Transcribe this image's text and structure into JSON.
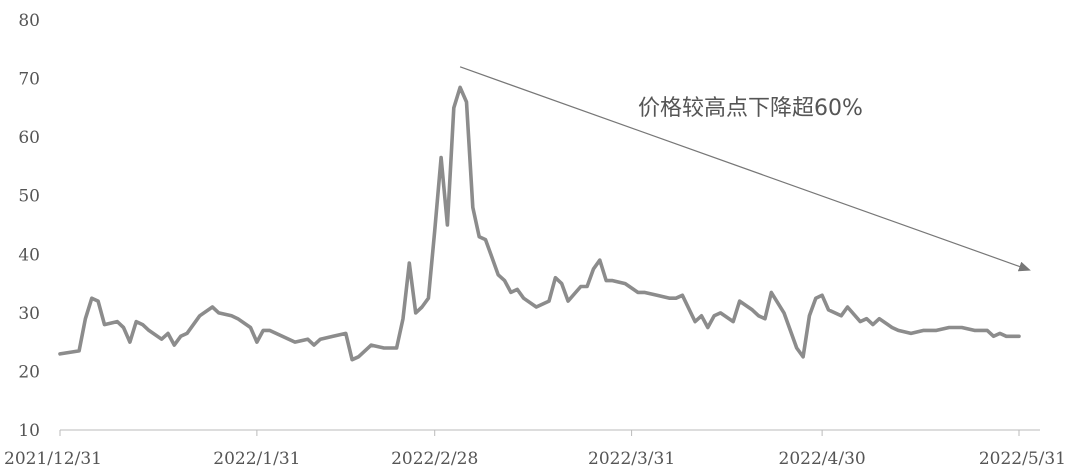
{
  "chart_data": {
    "type": "line",
    "title": "",
    "xlabel": "",
    "ylabel": "",
    "ylim": [
      10,
      80
    ],
    "yticks": [
      10,
      20,
      30,
      40,
      50,
      60,
      70,
      80
    ],
    "x_tick_labels": [
      "2021/12/31",
      "2022/1/31",
      "2022/2/28",
      "2022/3/31",
      "2022/4/30",
      "2022/5/31"
    ],
    "x_tick_dates": [
      "2021-12-31",
      "2022-01-31",
      "2022-02-28",
      "2022-03-31",
      "2022-04-30",
      "2022-05-31"
    ],
    "grid": false,
    "legend": "none",
    "line_color": "#8c8c8c",
    "annotation": {
      "text": "价格较高点下降超60%",
      "arrow_from": {
        "x": "2022-03-04",
        "y": 72
      },
      "arrow_to": {
        "x": "2022-05-31",
        "y": 37
      },
      "color": "#777777"
    },
    "series": [
      {
        "x": [
          "2021-12-31",
          "2022-01-03",
          "2022-01-04",
          "2022-01-05",
          "2022-01-06",
          "2022-01-07",
          "2022-01-09",
          "2022-01-10",
          "2022-01-11",
          "2022-01-12",
          "2022-01-13",
          "2022-01-14",
          "2022-01-16",
          "2022-01-17",
          "2022-01-18",
          "2022-01-19",
          "2022-01-20",
          "2022-01-22",
          "2022-01-24",
          "2022-01-25",
          "2022-01-27",
          "2022-01-28",
          "2022-01-30",
          "2022-01-31",
          "2022-02-01",
          "2022-02-02",
          "2022-02-04",
          "2022-02-06",
          "2022-02-08",
          "2022-02-09",
          "2022-02-10",
          "2022-02-12",
          "2022-02-14",
          "2022-02-15",
          "2022-02-16",
          "2022-02-18",
          "2022-02-20",
          "2022-02-21",
          "2022-02-22",
          "2022-02-23",
          "2022-02-24",
          "2022-02-25",
          "2022-02-26",
          "2022-02-27",
          "2022-02-28",
          "2022-03-01",
          "2022-03-02",
          "2022-03-03",
          "2022-03-04",
          "2022-03-05",
          "2022-03-06",
          "2022-03-07",
          "2022-03-08",
          "2022-03-09",
          "2022-03-10",
          "2022-03-11",
          "2022-03-12",
          "2022-03-13",
          "2022-03-14",
          "2022-03-16",
          "2022-03-18",
          "2022-03-19",
          "2022-03-20",
          "2022-03-21",
          "2022-03-23",
          "2022-03-24",
          "2022-03-25",
          "2022-03-26",
          "2022-03-27",
          "2022-03-28",
          "2022-03-30",
          "2022-04-01",
          "2022-04-02",
          "2022-04-04",
          "2022-04-06",
          "2022-04-07",
          "2022-04-08",
          "2022-04-10",
          "2022-04-11",
          "2022-04-12",
          "2022-04-13",
          "2022-04-14",
          "2022-04-16",
          "2022-04-17",
          "2022-04-19",
          "2022-04-20",
          "2022-04-21",
          "2022-04-22",
          "2022-04-24",
          "2022-04-26",
          "2022-04-27",
          "2022-04-28",
          "2022-04-29",
          "2022-04-30",
          "2022-05-01",
          "2022-05-03",
          "2022-05-04",
          "2022-05-06",
          "2022-05-07",
          "2022-05-08",
          "2022-05-09",
          "2022-05-11",
          "2022-05-12",
          "2022-05-14",
          "2022-05-16",
          "2022-05-18",
          "2022-05-20",
          "2022-05-22",
          "2022-05-24",
          "2022-05-26",
          "2022-05-27",
          "2022-05-28",
          "2022-05-29",
          "2022-05-31"
        ],
        "y": [
          23,
          23.5,
          29,
          32.5,
          32,
          28,
          28.5,
          27.5,
          25,
          28.5,
          28,
          27,
          25.5,
          26.5,
          24.5,
          26,
          26.5,
          29.5,
          31,
          30,
          29.5,
          29,
          27.5,
          25,
          27,
          27,
          26,
          25,
          25.5,
          24.5,
          25.5,
          26,
          26.5,
          22,
          22.5,
          24.5,
          24,
          24,
          24,
          29,
          38.5,
          30,
          31,
          32.5,
          44,
          56.5,
          45,
          65,
          68.5,
          66,
          48,
          43,
          42.5,
          39.5,
          36.5,
          35.5,
          33.5,
          34,
          32.5,
          31,
          32,
          36,
          35,
          32,
          34.5,
          34.5,
          37.5,
          39,
          35.5,
          35.5,
          35,
          33.5,
          33.5,
          33,
          32.5,
          32.5,
          33,
          28.5,
          29.5,
          27.5,
          29.5,
          30,
          28.5,
          32,
          30.5,
          29.5,
          29,
          33.5,
          30,
          24,
          22.5,
          29.5,
          32.5,
          33,
          30.5,
          29.5,
          31,
          28.5,
          29,
          28,
          29,
          27.5,
          27,
          26.5,
          27,
          27,
          27.5,
          27.5,
          27,
          27,
          26,
          26.5,
          26,
          26
        ]
      }
    ]
  }
}
